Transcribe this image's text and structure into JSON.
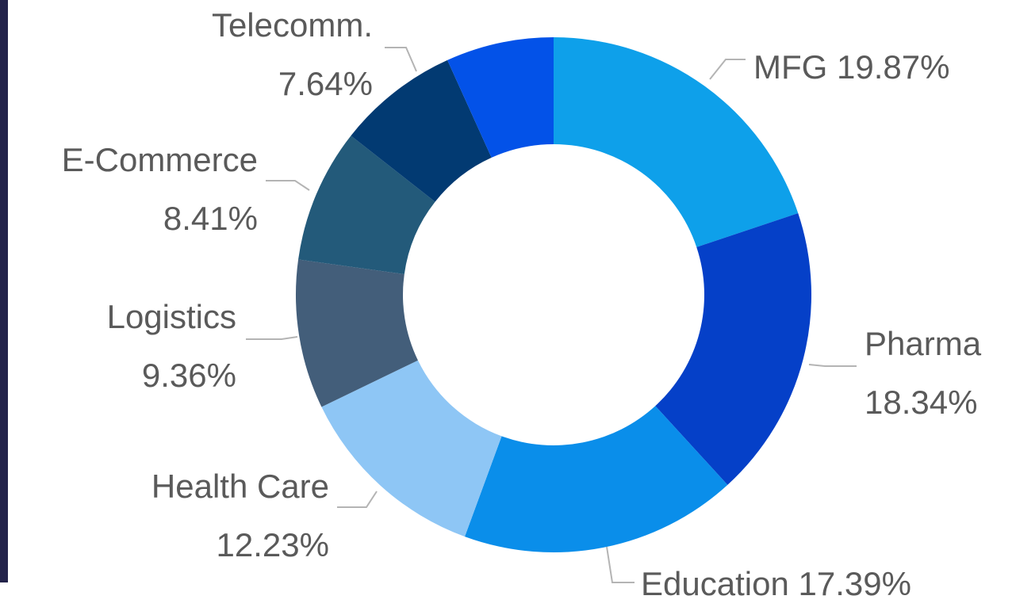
{
  "chart_data": {
    "type": "donut",
    "categories": [
      "MFG",
      "Pharma",
      "Education",
      "Health Care",
      "Logistics",
      "E-Commerce",
      "Telecomm.",
      null
    ],
    "values": [
      19.87,
      18.34,
      17.39,
      12.23,
      9.36,
      8.41,
      7.64,
      6.76
    ],
    "value_labels": [
      "19.87%",
      "18.34%",
      "17.39%",
      "12.23%",
      "9.36%",
      "8.41%",
      "7.64%",
      null
    ],
    "colors": [
      "#0ea0ea",
      "#0540c8",
      "#0a8eea",
      "#8ec6f5",
      "#435e7a",
      "#235a7a",
      "#023a72",
      "#0352e8"
    ]
  }
}
